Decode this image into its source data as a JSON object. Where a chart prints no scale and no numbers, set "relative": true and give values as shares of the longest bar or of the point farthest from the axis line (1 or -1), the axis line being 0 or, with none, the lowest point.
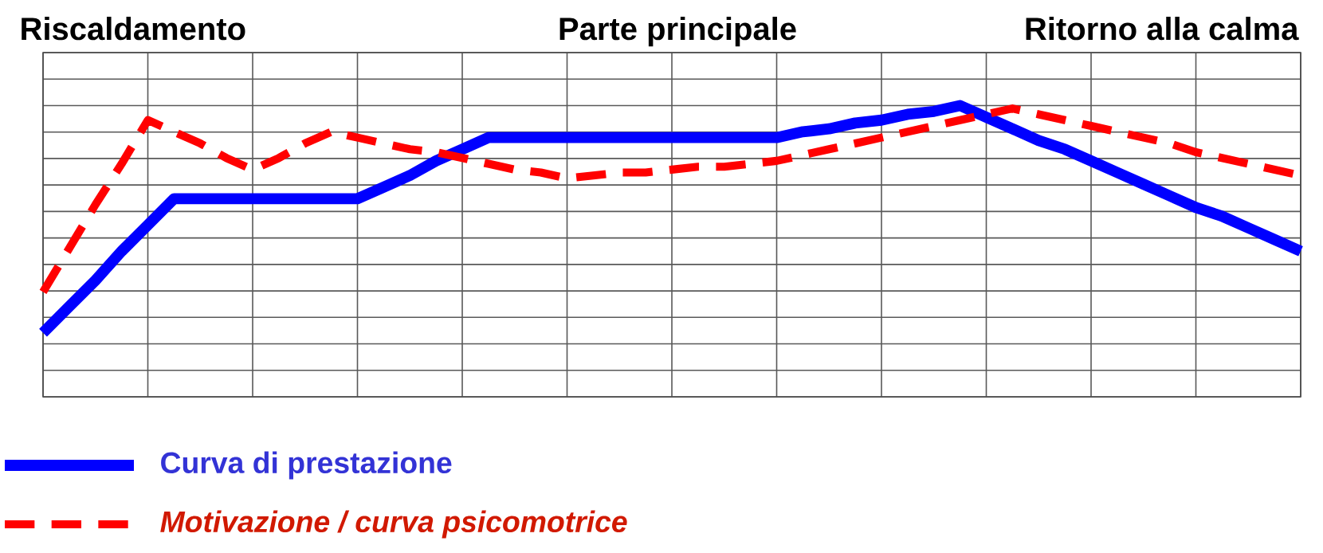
{
  "chart_data": {
    "type": "line",
    "relative": true,
    "annotations": [
      "Riscaldamento",
      "Parte principale",
      "Ritorno alla calma"
    ],
    "categories": [
      null,
      null,
      null,
      null,
      null,
      null,
      null,
      null,
      null,
      null,
      null,
      null,
      null,
      null,
      null,
      null,
      null,
      null,
      null,
      null,
      null,
      null,
      null,
      null,
      null,
      null,
      null,
      null,
      null,
      null,
      null,
      null,
      null,
      null,
      null,
      null,
      null,
      null,
      null,
      null,
      null,
      null,
      null,
      null,
      null,
      null,
      null,
      null,
      null
    ],
    "grid": true,
    "legend": "bottom",
    "series": [
      {
        "name": "Curva di prestazione",
        "color": "#0000ff",
        "line_style": "solid",
        "values": [
          0.22,
          0.31,
          0.4,
          0.5,
          0.59,
          0.68,
          0.68,
          0.68,
          0.68,
          0.68,
          0.68,
          0.68,
          0.68,
          0.72,
          0.76,
          0.81,
          0.85,
          0.89,
          0.89,
          0.89,
          0.89,
          0.89,
          0.89,
          0.89,
          0.89,
          0.89,
          0.89,
          0.89,
          0.89,
          0.91,
          0.92,
          0.94,
          0.95,
          0.97,
          0.98,
          1.0,
          0.96,
          0.92,
          0.88,
          0.85,
          0.81,
          0.77,
          0.73,
          0.69,
          0.65,
          0.62,
          0.58,
          0.54,
          0.5
        ]
      },
      {
        "name": "Motivazione / curva psicomotrice",
        "color": "#ff0000",
        "line_style": "dashed",
        "values": [
          0.36,
          0.51,
          0.66,
          0.8,
          0.95,
          0.91,
          0.87,
          0.82,
          0.78,
          0.82,
          0.87,
          0.91,
          0.89,
          0.87,
          0.85,
          0.84,
          0.82,
          0.8,
          0.78,
          0.77,
          0.75,
          0.76,
          0.77,
          0.77,
          0.78,
          0.79,
          0.79,
          0.8,
          0.81,
          0.83,
          0.85,
          0.87,
          0.89,
          0.91,
          0.93,
          0.95,
          0.97,
          0.99,
          0.97,
          0.95,
          0.93,
          0.91,
          0.89,
          0.87,
          0.84,
          0.82,
          0.8,
          0.78,
          0.76
        ]
      }
    ]
  }
}
